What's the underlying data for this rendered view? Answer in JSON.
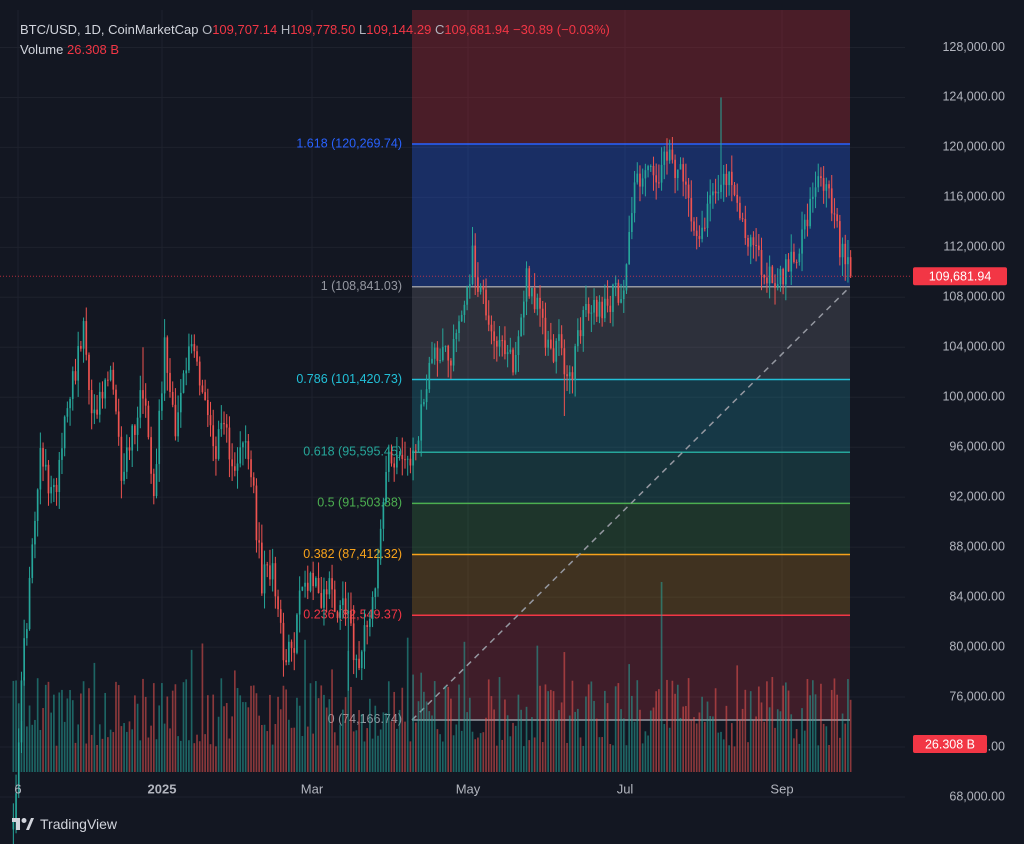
{
  "header": {
    "symbol": "BTC/USD, 1D, CoinMarketCap",
    "open_label": "O",
    "open": "109,707.14",
    "high_label": "H",
    "high": "109,778.50",
    "low_label": "L",
    "low": "109,144.29",
    "close_label": "C",
    "close": "109,681.94",
    "change": "−30.89 (−0.03%)",
    "volume_label": "Volume",
    "volume": "26.308 B"
  },
  "branding": {
    "name": "TradingView",
    "icon": "tradingview-logo-icon"
  },
  "colors": {
    "background": "#131722",
    "up": "#26a69a",
    "down": "#ef5350",
    "grid": "#1e222d",
    "axis_text": "#b2b5be",
    "price_tag": "#f23645"
  },
  "chart_data": {
    "type": "candlestick",
    "symbol": "BTC/USD",
    "interval": "1D",
    "ylim": [
      70000,
      131000
    ],
    "y_ticks": [
      "128,000.00",
      "124,000.00",
      "120,000.00",
      "116,000.00",
      "112,000.00",
      "108,000.00",
      "104,000.00",
      "100,000.00",
      "96,000.00",
      "92,000.00",
      "88,000.00",
      "84,000.00",
      "80,000.00",
      "76,000.00",
      "72,000.00",
      "68,000.00"
    ],
    "x_ticks": [
      "6",
      "2025",
      "Mar",
      "May",
      "Jul",
      "Sep"
    ],
    "last_price": "109,681.94",
    "last_volume": "26.308 B",
    "fibonacci": {
      "levels": [
        {
          "ratio": "1.618",
          "label": "1.618 (120,269.74)",
          "price": 120269.74,
          "color": "#2962ff"
        },
        {
          "ratio": "1",
          "label": "1 (108,841.03)",
          "price": 108841.03,
          "color": "#9598a1"
        },
        {
          "ratio": "0.786",
          "label": "0.786 (101,420.73)",
          "price": 101420.73,
          "color": "#22c0d8"
        },
        {
          "ratio": "0.618",
          "label": "0.618 (95,595.45)",
          "price": 95595.45,
          "color": "#26a69a"
        },
        {
          "ratio": "0.5",
          "label": "0.5 (91,503.88)",
          "price": 91503.88,
          "color": "#4caf50"
        },
        {
          "ratio": "0.382",
          "label": "0.382 (87,412.32)",
          "price": 87412.32,
          "color": "#f7a21b"
        },
        {
          "ratio": "0.236",
          "label": "0.236 (82,549.37)",
          "price": 82549.37,
          "color": "#f23645"
        },
        {
          "ratio": "0",
          "label": "0 (74,166.74)",
          "price": 74166.74,
          "color": "#9598a1"
        }
      ]
    },
    "series": [
      {
        "name": "BTC/USD",
        "waypoints": [
          [
            0,
            66000
          ],
          [
            4,
            80000
          ],
          [
            10,
            95000
          ],
          [
            15,
            92000
          ],
          [
            20,
            100000
          ],
          [
            26,
            105000
          ],
          [
            30,
            98000
          ],
          [
            36,
            102000
          ],
          [
            40,
            94000
          ],
          [
            44,
            97000
          ],
          [
            48,
            101000
          ],
          [
            52,
            93000
          ],
          [
            56,
            104000
          ],
          [
            60,
            98000
          ],
          [
            66,
            104500
          ],
          [
            70,
            101000
          ],
          [
            74,
            96000
          ],
          [
            78,
            97000
          ],
          [
            82,
            95000
          ],
          [
            86,
            96000
          ],
          [
            88,
            94000
          ],
          [
            92,
            85000
          ],
          [
            96,
            87000
          ],
          [
            100,
            80000
          ],
          [
            103,
            79000
          ],
          [
            106,
            84000
          ],
          [
            110,
            86000
          ],
          [
            114,
            84000
          ],
          [
            117,
            85000
          ],
          [
            120,
            83000
          ],
          [
            124,
            84000
          ],
          [
            127,
            78000
          ],
          [
            130,
            82000
          ],
          [
            134,
            84500
          ],
          [
            138,
            94000
          ],
          [
            142,
            96000
          ],
          [
            146,
            94000
          ],
          [
            150,
            97000
          ],
          [
            154,
            103000
          ],
          [
            158,
            104000
          ],
          [
            162,
            103500
          ],
          [
            166,
            107000
          ],
          [
            170,
            111000
          ],
          [
            174,
            108000
          ],
          [
            178,
            105000
          ],
          [
            182,
            103000
          ],
          [
            186,
            103000
          ],
          [
            190,
            110000
          ],
          [
            194,
            107000
          ],
          [
            198,
            104000
          ],
          [
            202,
            104000
          ],
          [
            206,
            101000
          ],
          [
            210,
            106000
          ],
          [
            214,
            107000
          ],
          [
            218,
            107500
          ],
          [
            222,
            108000
          ],
          [
            226,
            109000
          ],
          [
            230,
            117000
          ],
          [
            234,
            118500
          ],
          [
            238,
            117000
          ],
          [
            242,
            119000
          ],
          [
            246,
            118000
          ],
          [
            250,
            116000
          ],
          [
            254,
            113000
          ],
          [
            258,
            116000
          ],
          [
            262,
            118000
          ],
          [
            266,
            116500
          ],
          [
            270,
            114000
          ],
          [
            274,
            112000
          ],
          [
            278,
            110000
          ],
          [
            282,
            109500
          ],
          [
            286,
            110000
          ],
          [
            290,
            112000
          ],
          [
            294,
            114000
          ],
          [
            298,
            117000
          ],
          [
            302,
            116000
          ],
          [
            306,
            112000
          ],
          [
            310,
            109682
          ]
        ],
        "spikes": [
          [
            48,
            104000,
            "high"
          ],
          [
            262,
            124000,
            "high"
          ],
          [
            204,
            98500,
            "low"
          ],
          [
            124,
            76500,
            "low"
          ]
        ]
      }
    ]
  }
}
